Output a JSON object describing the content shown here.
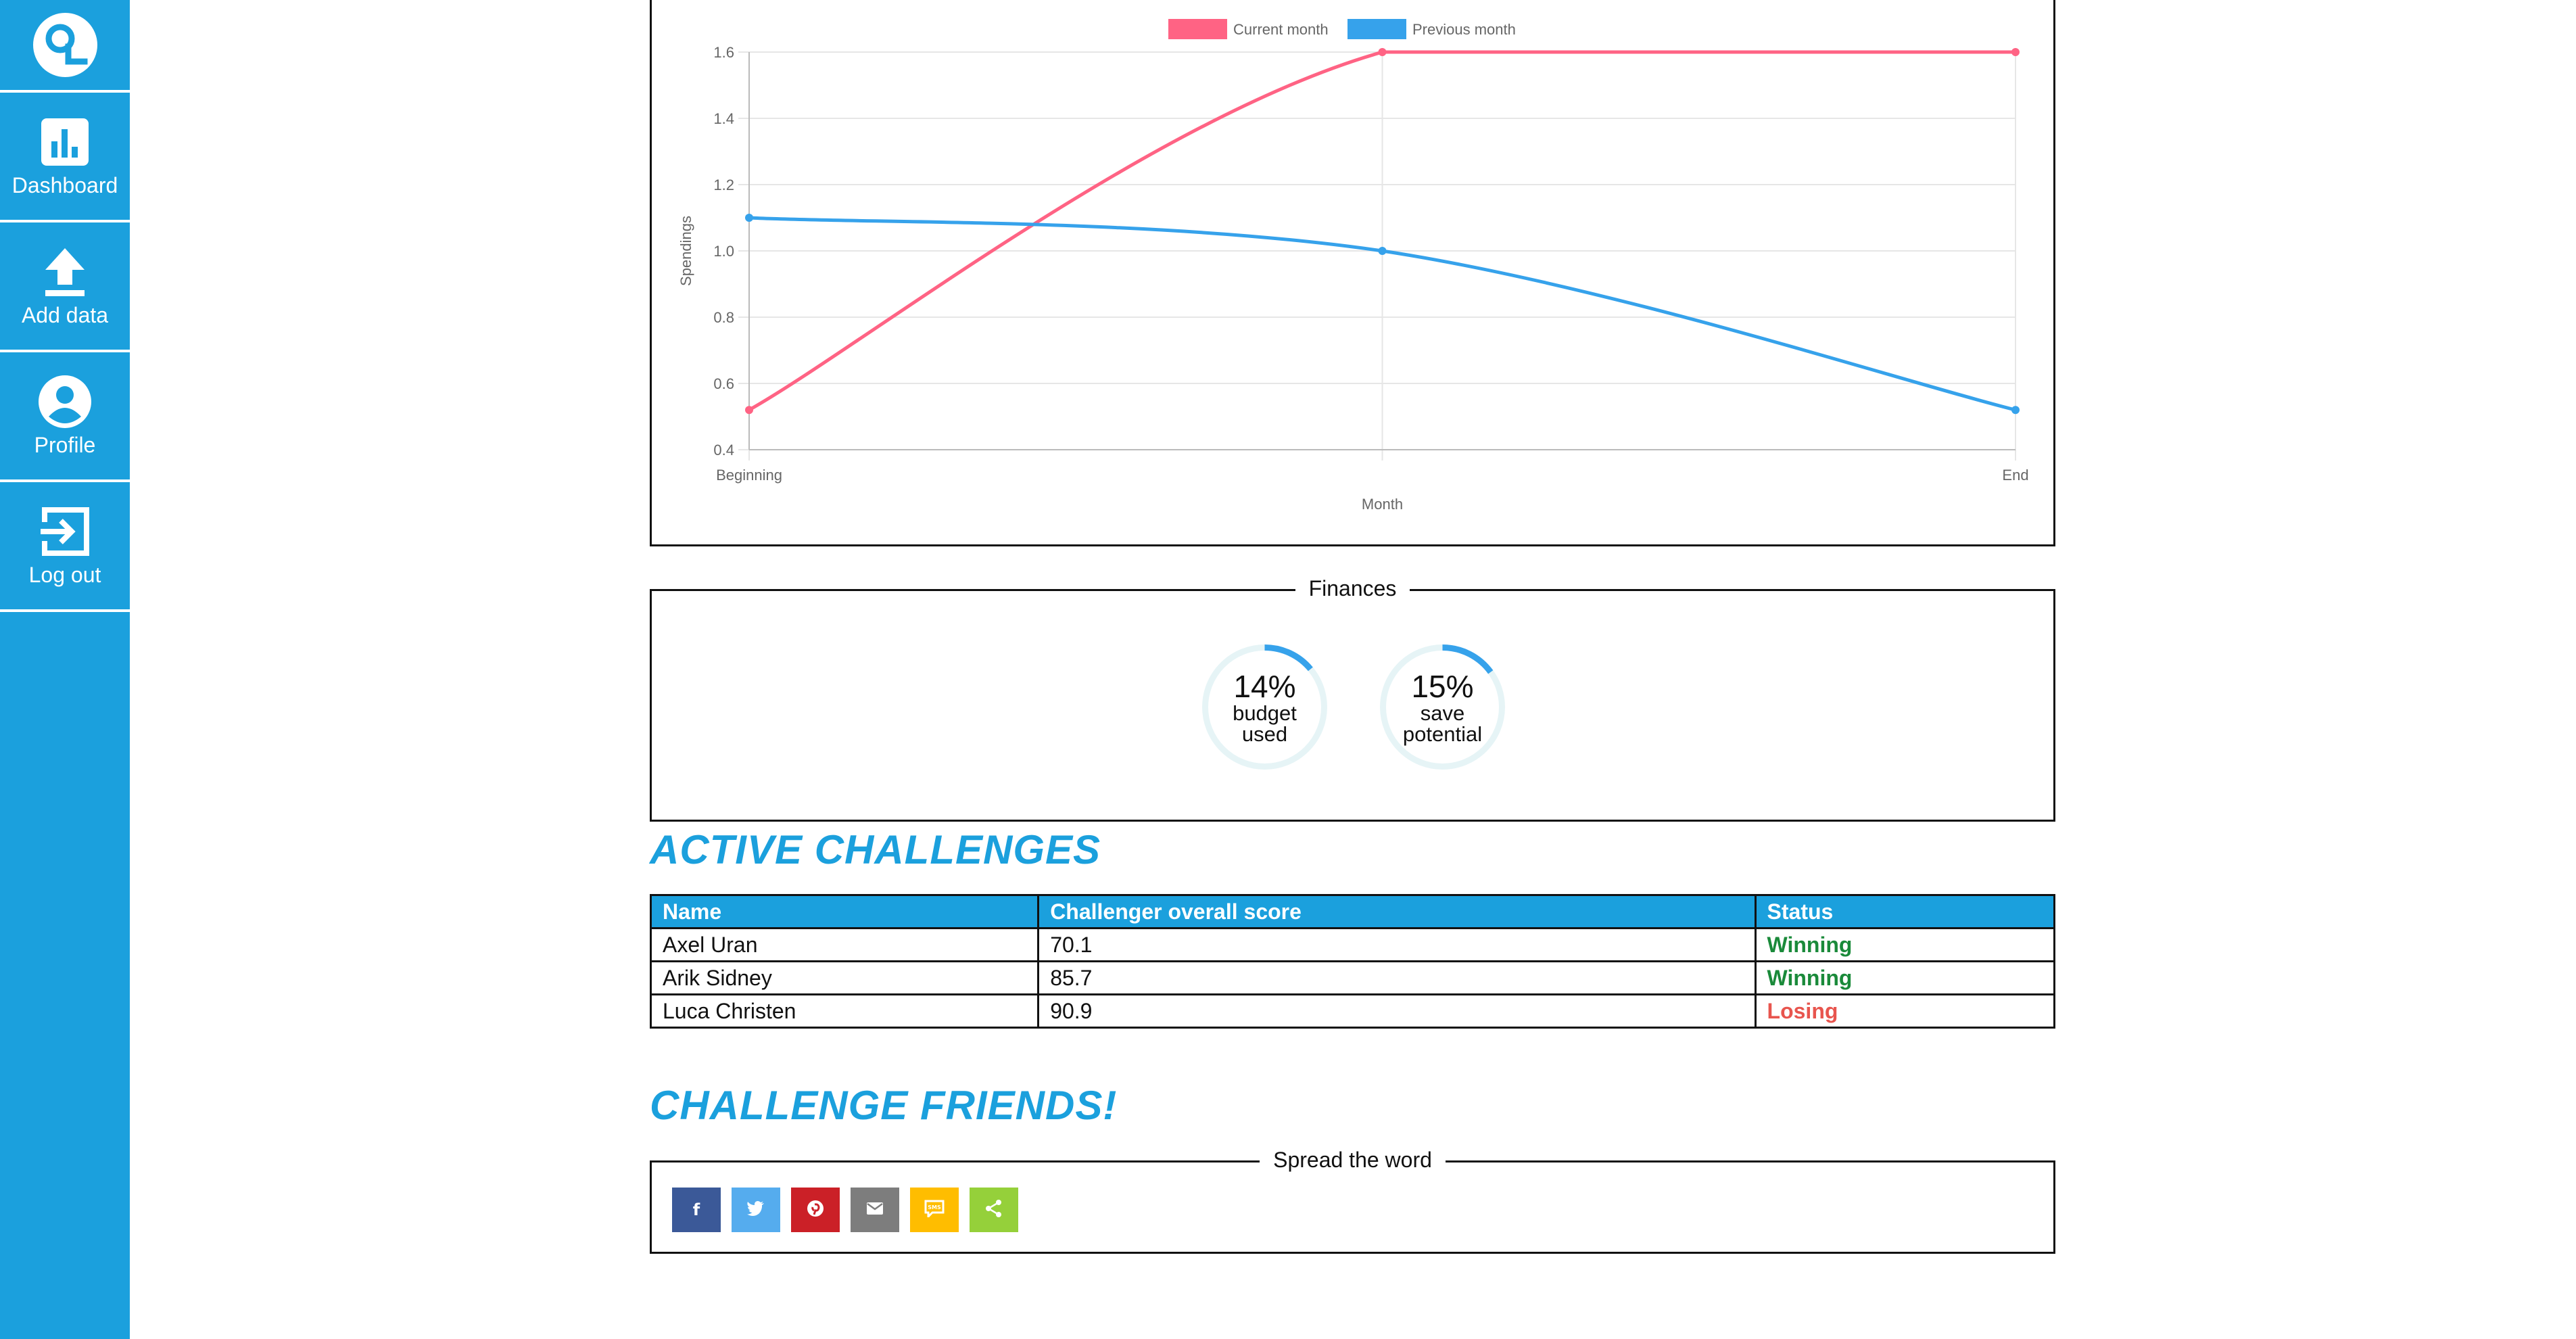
{
  "sidebar": {
    "items": [
      {
        "label": "Dashboard",
        "icon": "bar-chart-icon"
      },
      {
        "label": "Add data",
        "icon": "upload-icon"
      },
      {
        "label": "Profile",
        "icon": "user-circle-icon"
      },
      {
        "label": "Log out",
        "icon": "logout-icon"
      }
    ]
  },
  "chart_data": {
    "type": "line",
    "categories": [
      "Beginning",
      "",
      "End"
    ],
    "series": [
      {
        "name": "Current month",
        "values": [
          0.52,
          1.6,
          1.6
        ],
        "color": "#ff6384"
      },
      {
        "name": "Previous month",
        "values": [
          1.1,
          1.0,
          0.52
        ],
        "color": "#36a2eb"
      }
    ],
    "xlabel": "Month",
    "ylabel": "Spendings",
    "ylim": [
      0.4,
      1.6
    ],
    "yticks": [
      "1.6",
      "1.4",
      "1.2",
      "1.0",
      "0.8",
      "0.6",
      "0.4"
    ],
    "grid": true,
    "legend": "top"
  },
  "finances": {
    "title": "Finances",
    "gauges": [
      {
        "percent_text": "14%",
        "value": 14,
        "label_line1": "budget",
        "label_line2": "used"
      },
      {
        "percent_text": "15%",
        "value": 15,
        "label_line1": "save",
        "label_line2": "potential"
      }
    ]
  },
  "challenges": {
    "heading": "ACTIVE CHALLENGES",
    "columns": [
      "Name",
      "Challenger overall score",
      "Status"
    ],
    "rows": [
      {
        "name": "Axel Uran",
        "score": "70.1",
        "status": "Winning"
      },
      {
        "name": "Arik Sidney",
        "score": "85.7",
        "status": "Winning"
      },
      {
        "name": "Luca Christen",
        "score": "90.9",
        "status": "Losing"
      }
    ]
  },
  "friends": {
    "heading": "CHALLENGE FRIENDS!",
    "legend": "Spread the word",
    "buttons": [
      {
        "name": "facebook",
        "icon": "facebook-icon",
        "color": "#3b5998"
      },
      {
        "name": "twitter",
        "icon": "twitter-icon",
        "color": "#55acee"
      },
      {
        "name": "pinterest",
        "icon": "pinterest-icon",
        "color": "#cb2027"
      },
      {
        "name": "email",
        "icon": "mail-icon",
        "color": "#7d7d7d"
      },
      {
        "name": "sms",
        "icon": "sms-icon",
        "color": "#ffbd00"
      },
      {
        "name": "share",
        "icon": "share-icon",
        "color": "#95d03a"
      }
    ]
  },
  "colors": {
    "accent": "#1ba0dd",
    "winning": "#1a8a3a",
    "losing": "#e8554e"
  }
}
